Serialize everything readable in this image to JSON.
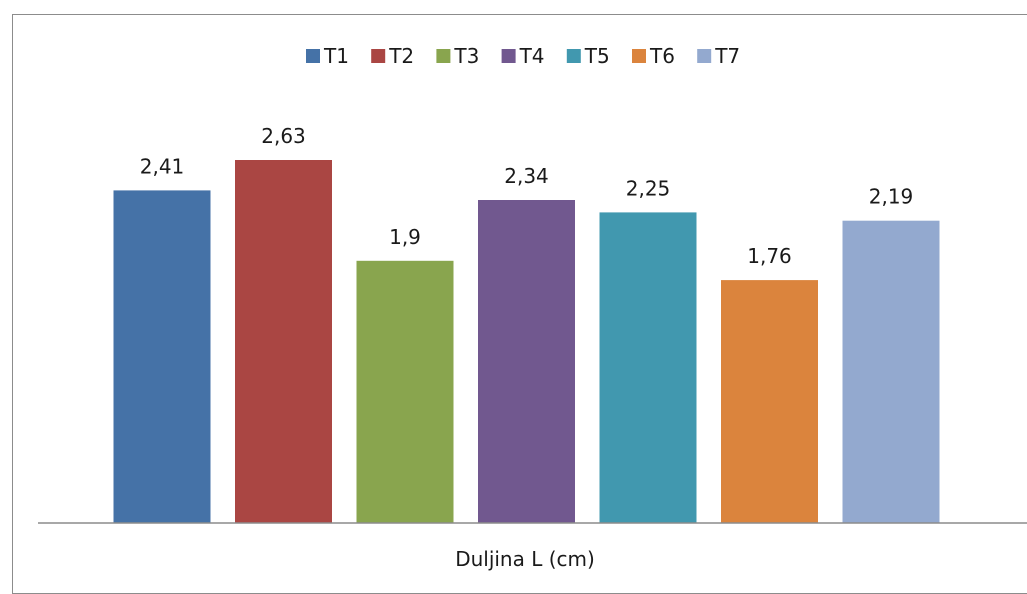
{
  "chart_data": {
    "type": "bar",
    "categories": [
      "T1",
      "T2",
      "T3",
      "T4",
      "T5",
      "T6",
      "T7"
    ],
    "values": [
      2.41,
      2.63,
      1.9,
      2.34,
      2.25,
      1.76,
      2.19
    ],
    "value_labels": [
      "2,41",
      "2,63",
      "1,9",
      "2,34",
      "2,25",
      "1,76",
      "2,19"
    ],
    "colors": [
      "#4572a7",
      "#aa4643",
      "#89a54e",
      "#71588f",
      "#4198af",
      "#db843d",
      "#93a9cf"
    ],
    "xlabel": "Duljina L (cm)",
    "ylabel": "",
    "ylim": [
      0,
      2.63
    ],
    "grid": false,
    "legend": "top-center"
  }
}
